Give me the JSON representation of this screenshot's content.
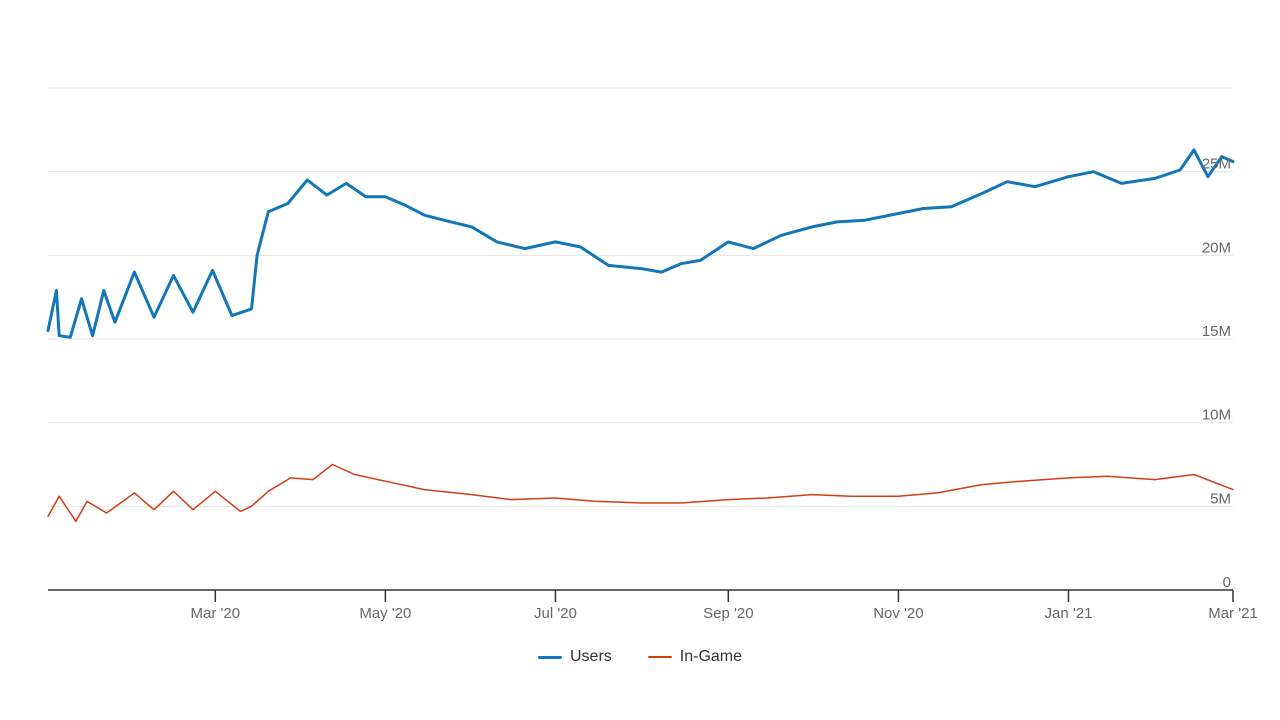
{
  "chart_data": {
    "type": "line",
    "title": "",
    "xlabel": "",
    "ylabel": "",
    "x_range": [
      "2020-01-01",
      "2021-03-01"
    ],
    "ylim": [
      0,
      30000000
    ],
    "grid": true,
    "legend_position": "bottom-center",
    "x_ticks": [
      {
        "date": "2020-03-01",
        "label": "Mar '20"
      },
      {
        "date": "2020-05-01",
        "label": "May '20"
      },
      {
        "date": "2020-07-01",
        "label": "Jul '20"
      },
      {
        "date": "2020-09-01",
        "label": "Sep '20"
      },
      {
        "date": "2020-11-01",
        "label": "Nov '20"
      },
      {
        "date": "2021-01-01",
        "label": "Jan '21"
      },
      {
        "date": "2021-03-01",
        "label": "Mar '21"
      }
    ],
    "y_ticks": [
      {
        "value": 0,
        "label": "0"
      },
      {
        "value": 5000000,
        "label": "5M"
      },
      {
        "value": 10000000,
        "label": "10M"
      },
      {
        "value": 15000000,
        "label": "15M"
      },
      {
        "value": 20000000,
        "label": "20M"
      },
      {
        "value": 25000000,
        "label": "25M"
      }
    ],
    "series": [
      {
        "name": "Users",
        "color": "#1276b8",
        "x": [
          "2020-01-01",
          "2020-01-04",
          "2020-01-05",
          "2020-01-09",
          "2020-01-13",
          "2020-01-17",
          "2020-01-21",
          "2020-01-25",
          "2020-02-01",
          "2020-02-08",
          "2020-02-15",
          "2020-02-22",
          "2020-02-29",
          "2020-03-07",
          "2020-03-14",
          "2020-03-16",
          "2020-03-20",
          "2020-03-27",
          "2020-04-03",
          "2020-04-10",
          "2020-04-17",
          "2020-04-24",
          "2020-05-01",
          "2020-05-08",
          "2020-05-15",
          "2020-05-22",
          "2020-06-01",
          "2020-06-10",
          "2020-06-20",
          "2020-07-01",
          "2020-07-10",
          "2020-07-20",
          "2020-08-01",
          "2020-08-08",
          "2020-08-15",
          "2020-08-22",
          "2020-09-01",
          "2020-09-10",
          "2020-09-20",
          "2020-10-01",
          "2020-10-10",
          "2020-10-20",
          "2020-11-01",
          "2020-11-10",
          "2020-11-20",
          "2020-12-01",
          "2020-12-10",
          "2020-12-20",
          "2021-01-01",
          "2021-01-10",
          "2021-01-20",
          "2021-02-01",
          "2021-02-10",
          "2021-02-15",
          "2021-02-20",
          "2021-02-25",
          "2021-03-01"
        ],
        "values": [
          15500000,
          17900000,
          15200000,
          15100000,
          17400000,
          15200000,
          17900000,
          16000000,
          19000000,
          16300000,
          18800000,
          16600000,
          19100000,
          16400000,
          16800000,
          20000000,
          22600000,
          23100000,
          24500000,
          23600000,
          24300000,
          23500000,
          23500000,
          23000000,
          22400000,
          22100000,
          21700000,
          20800000,
          20400000,
          20800000,
          20500000,
          19400000,
          19200000,
          19000000,
          19500000,
          19700000,
          20800000,
          20400000,
          21200000,
          21700000,
          22000000,
          22100000,
          22500000,
          22800000,
          22900000,
          23700000,
          24400000,
          24100000,
          24700000,
          25000000,
          24300000,
          24600000,
          25100000,
          26300000,
          24700000,
          25900000,
          25600000
        ]
      },
      {
        "name": "In-Game",
        "color": "#d43d14",
        "x": [
          "2020-01-01",
          "2020-01-05",
          "2020-01-11",
          "2020-01-15",
          "2020-01-22",
          "2020-02-01",
          "2020-02-08",
          "2020-02-15",
          "2020-02-22",
          "2020-03-01",
          "2020-03-10",
          "2020-03-14",
          "2020-03-20",
          "2020-03-28",
          "2020-04-05",
          "2020-04-12",
          "2020-04-20",
          "2020-05-01",
          "2020-05-15",
          "2020-06-01",
          "2020-06-15",
          "2020-07-01",
          "2020-07-15",
          "2020-08-01",
          "2020-08-15",
          "2020-09-01",
          "2020-09-15",
          "2020-10-01",
          "2020-10-15",
          "2020-11-01",
          "2020-11-15",
          "2020-12-01",
          "2020-12-15",
          "2021-01-01",
          "2021-01-15",
          "2021-02-01",
          "2021-02-15",
          "2021-03-01"
        ],
        "values": [
          4400000,
          5600000,
          4100000,
          5300000,
          4600000,
          5800000,
          4800000,
          5900000,
          4800000,
          5900000,
          4700000,
          5000000,
          5900000,
          6700000,
          6600000,
          7500000,
          6900000,
          6500000,
          6000000,
          5700000,
          5400000,
          5500000,
          5300000,
          5200000,
          5200000,
          5400000,
          5500000,
          5700000,
          5600000,
          5600000,
          5800000,
          6300000,
          6500000,
          6700000,
          6800000,
          6600000,
          6900000,
          6000000
        ]
      }
    ]
  }
}
